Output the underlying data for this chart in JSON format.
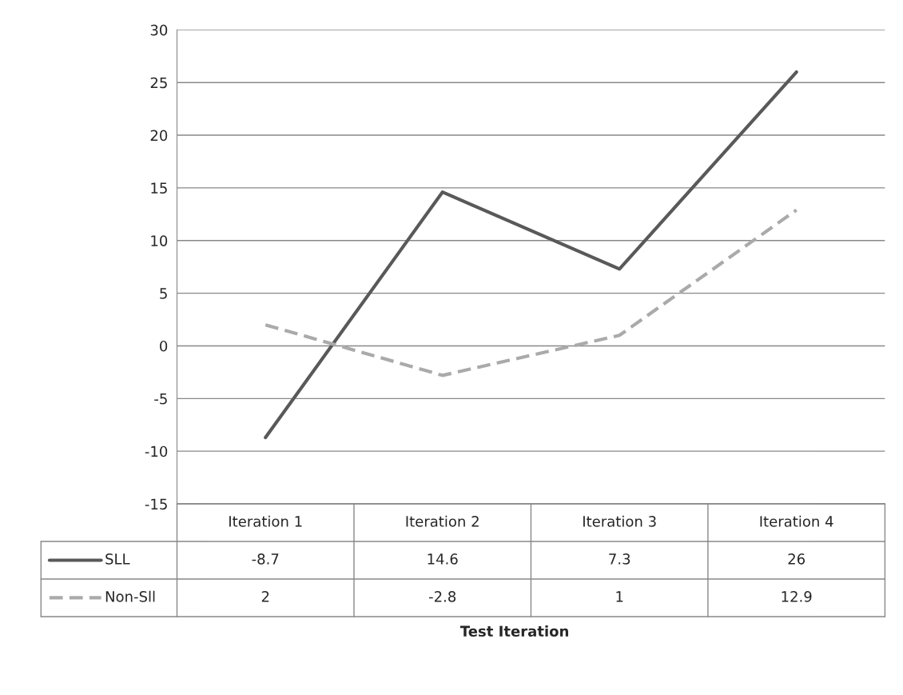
{
  "chart_data": {
    "type": "line",
    "annotations": [
      "Test Iteration"
    ],
    "categories": [
      "Iteration 1",
      "Iteration 2",
      "Iteration 3",
      "Iteration 4"
    ],
    "series": [
      {
        "name": "SLL",
        "color": "#595959",
        "line_style": "solid",
        "values": [
          -8.7,
          14.6,
          7.3,
          26
        ]
      },
      {
        "name": "Non-Sll",
        "color": "#aaaaaa",
        "line_style": "dashed",
        "values": [
          2,
          -2.8,
          1,
          12.9
        ]
      }
    ],
    "ylim": [
      -15,
      30
    ],
    "yticks": [
      -15,
      -10,
      -5,
      0,
      5,
      10,
      15,
      20,
      25,
      30
    ],
    "grid": "y",
    "legend": "bottom",
    "data_labels": true,
    "marker": "none"
  }
}
